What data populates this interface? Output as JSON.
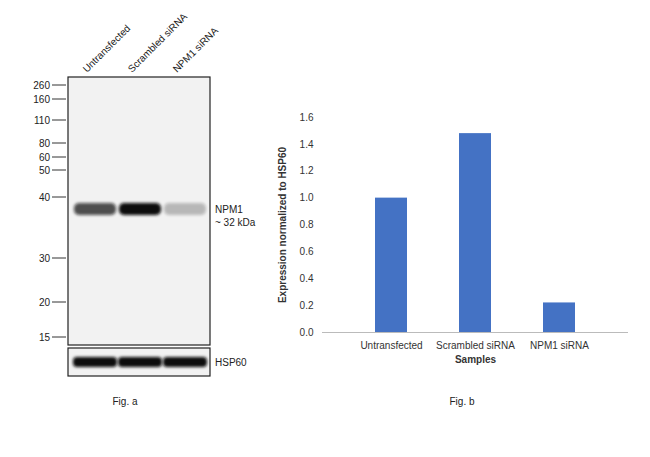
{
  "figure_a": {
    "type": "western_blot",
    "caption": "Fig. a",
    "lanes": [
      "Untransfected",
      "Scrambled siRNA",
      "NPM1 siRNA"
    ],
    "marker_kda": [
      260,
      160,
      110,
      80,
      60,
      50,
      40,
      30,
      20,
      15
    ],
    "band_label": "NPM1",
    "band_size": "~ 32 kDa",
    "loading_control": "HSP60"
  },
  "chart_data": {
    "type": "bar",
    "caption": "Fig. b",
    "categories": [
      "Untransfected",
      "Scrambled siRNA",
      "NPM1 siRNA"
    ],
    "values": [
      1.0,
      1.48,
      0.22
    ],
    "color": "#4472c4",
    "x_label": "Samples",
    "y_label": "Expression normalized to HSP60",
    "ylim": [
      0,
      1.6
    ],
    "yticks": [
      0,
      0.2,
      0.4,
      0.6,
      0.8,
      1,
      1.2,
      1.4,
      1.6
    ],
    "grid": false
  }
}
